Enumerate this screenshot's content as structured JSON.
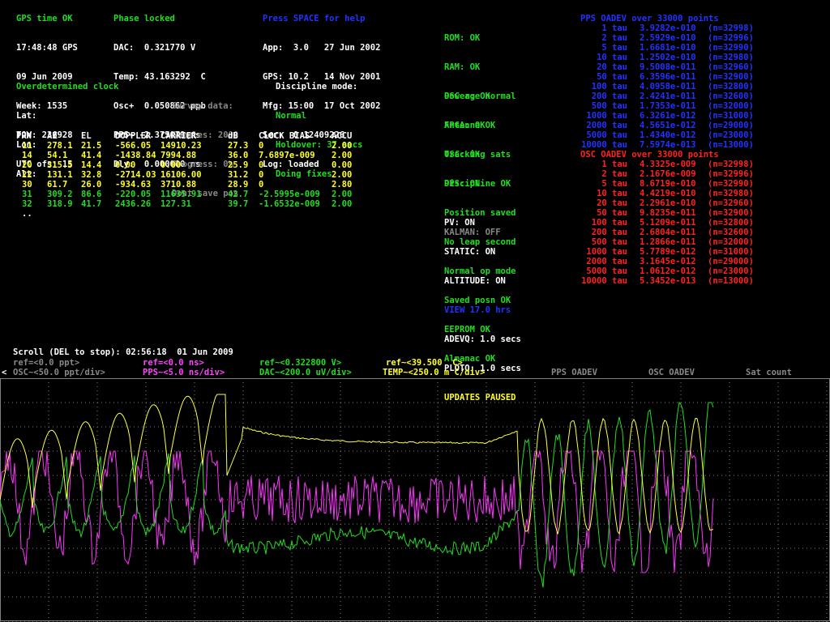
{
  "status": {
    "title": "GPS time OK",
    "lines": [
      "17:48:48 GPS",
      "09 Jun 2009",
      "Week: 1535",
      "TOW: 236928",
      "UTC ofs: 15"
    ]
  },
  "phase": {
    "title": "Phase locked",
    "lines": [
      "DAC:  0.321770 V",
      "Temp: 43.163292  C",
      "Osc+  0.050862 ppb",
      "PPS+ -2.375079 ns",
      "Dly:  0.000000 ns"
    ]
  },
  "help": {
    "title": "Press SPACE for help",
    "lines": [
      "App:  3.0   27 Jun 2002",
      "GPS: 10.2   14 Nov 2001",
      "Mfg: 15:00  17 Oct 2002",
      "Ser:  0.12409226",
      "Log: loaded"
    ]
  },
  "health": {
    "group1": [
      "ROM: OK",
      "RAM: OK",
      "Power: OK",
      "FPGA: OK",
      "OSC: OK"
    ],
    "group2": [
      "OSC age normal",
      "Antenna OK",
      "Tracking sats",
      "Discipline OK",
      "Position saved",
      "No leap second",
      "Normal op mode",
      "Saved posn OK",
      "EEPROM OK",
      "Almanac OK"
    ],
    "pps": "PPS: ON",
    "group3": [
      "PV: ON",
      "STATIC: ON",
      "ALTITUDE: ON"
    ],
    "kalman": "KALMAN: OFF"
  },
  "pps_adev": {
    "title": "PPS OADEV over 33000 points",
    "rows": [
      {
        "tau": "1 tau",
        "val": "3.9282e-010",
        "n": "(n=32998)"
      },
      {
        "tau": "2 tau",
        "val": "2.5929e-010",
        "n": "(n=32996)"
      },
      {
        "tau": "5 tau",
        "val": "1.6681e-010",
        "n": "(n=32990)"
      },
      {
        "tau": "10 tau",
        "val": "1.2502e-010",
        "n": "(n=32980)"
      },
      {
        "tau": "20 tau",
        "val": "9.5008e-011",
        "n": "(n=32960)"
      },
      {
        "tau": "50 tau",
        "val": "6.3596e-011",
        "n": "(n=32900)"
      },
      {
        "tau": "100 tau",
        "val": "4.0958e-011",
        "n": "(n=32800)"
      },
      {
        "tau": "200 tau",
        "val": "2.4241e-011",
        "n": "(n=32600)"
      },
      {
        "tau": "500 tau",
        "val": "1.7353e-011",
        "n": "(n=32000)"
      },
      {
        "tau": "1000 tau",
        "val": "6.3261e-012",
        "n": "(n=31000)"
      },
      {
        "tau": "2000 tau",
        "val": "4.5651e-012",
        "n": "(n=29000)"
      },
      {
        "tau": "5000 tau",
        "val": "1.4340e-012",
        "n": "(n=23000)"
      },
      {
        "tau": "10000 tau",
        "val": "7.5974e-013",
        "n": "(n=13000)"
      }
    ]
  },
  "osc_adev": {
    "title": "OSC OADEV over 33000 points",
    "rows": [
      {
        "tau": "1 tau",
        "val": "4.3325e-009",
        "n": "(n=32998)"
      },
      {
        "tau": "2 tau",
        "val": "2.1676e-009",
        "n": "(n=32996)"
      },
      {
        "tau": "5 tau",
        "val": "8.6719e-010",
        "n": "(n=32990)"
      },
      {
        "tau": "10 tau",
        "val": "4.4219e-010",
        "n": "(n=32980)"
      },
      {
        "tau": "20 tau",
        "val": "2.2961e-010",
        "n": "(n=32960)"
      },
      {
        "tau": "50 tau",
        "val": "9.8235e-011",
        "n": "(n=32900)"
      },
      {
        "tau": "100 tau",
        "val": "5.1209e-011",
        "n": "(n=32800)"
      },
      {
        "tau": "200 tau",
        "val": "2.6804e-011",
        "n": "(n=32600)"
      },
      {
        "tau": "500 tau",
        "val": "1.2866e-011",
        "n": "(n=32000)"
      },
      {
        "tau": "1000 tau",
        "val": "5.7789e-012",
        "n": "(n=31000)"
      },
      {
        "tau": "2000 tau",
        "val": "3.1645e-012",
        "n": "(n=29000)"
      },
      {
        "tau": "5000 tau",
        "val": "1.0612e-012",
        "n": "(n=23000)"
      },
      {
        "tau": "10000 tau",
        "val": "5.3452e-013",
        "n": "(n=13000)"
      }
    ]
  },
  "view": {
    "title": "VIEW 17.0 hrs",
    "adevq": "ADEVQ: 1.0 secs",
    "plotq": "PLOTQ: 1.0 secs",
    "paused": "UPDATES PAUSED"
  },
  "clock": {
    "title": "Overdetermined clock",
    "lat": "Lat:",
    "lon": "Lon:",
    "alt": "Alt:"
  },
  "survey": {
    "title": "Survey data:",
    "samples": "Samples: 2000",
    "progress": "Progress: 0%",
    "save": "Dont save pos"
  },
  "discipline": {
    "title": "Discipline mode:",
    "mode": "Normal",
    "holdover": "Holdover: 37 secs",
    "fixes": "Doing fixes"
  },
  "sats": {
    "headers": [
      "PRN",
      "AZ",
      "EL",
      "DOPPLER",
      "CARRIER",
      "dB",
      "CLOCK BIAS",
      "ACCU"
    ],
    "rows": [
      {
        "tracked": false,
        "cells": [
          "11",
          "278.1",
          "21.5",
          "-566.05",
          "14910.23",
          "27.3",
          "0",
          "2.00"
        ]
      },
      {
        "tracked": false,
        "cells": [
          "14",
          "54.1",
          "41.4",
          "-1438.84",
          "7994.88",
          "36.0",
          "7.6897e-009",
          "2.00"
        ]
      },
      {
        "tracked": false,
        "cells": [
          "20",
          "315.5",
          "14.4",
          "0.00",
          "0.00",
          "25.9",
          "0",
          "0.00"
        ]
      },
      {
        "tracked": false,
        "cells": [
          "22",
          "131.1",
          "32.8",
          "-2714.03",
          "16106.00",
          "31.2",
          "0",
          "2.00"
        ]
      },
      {
        "tracked": false,
        "cells": [
          "30",
          "61.7",
          "26.0",
          "-934.63",
          "3710.88",
          "28.9",
          "0",
          "2.80"
        ]
      },
      {
        "tracked": true,
        "cells": [
          "31",
          "309.2",
          "86.6",
          "-220.05",
          "11635.91",
          "42.7",
          "-2.5995e-009",
          "2.00"
        ]
      },
      {
        "tracked": true,
        "cells": [
          "32",
          "318.9",
          "41.7",
          "2436.26",
          "127.31",
          "39.7",
          "-1.6532e-009",
          "2.00"
        ]
      }
    ],
    "more": ".."
  },
  "plot": {
    "scroll": "Scroll (DEL to stop): 02:56:18  01 Jun 2009",
    "ref_osc": "ref=<0.0 ppt>",
    "ref_pps": "ref=<0.0 ns>",
    "ref_dac": "ref~<0.322800 V>",
    "ref_temp": "ref~<39.500  C>",
    "left_arrow": "<",
    "osc": "OSC~<50.0 ppt/div>",
    "pps": "PPS~<5.0 ns/div>",
    "dac": "DAC~<200.0 uV/div>",
    "temp": "TEMP~<250.0 m C/div>",
    "pps_oadev": "PPS OADEV",
    "osc_oadev": "OSC OADEV",
    "sat_count": "Sat count",
    "colors": {
      "grid": "#808080",
      "pps": "#ff33ff",
      "dac": "#22dd22",
      "temp": "#ffff44"
    }
  }
}
